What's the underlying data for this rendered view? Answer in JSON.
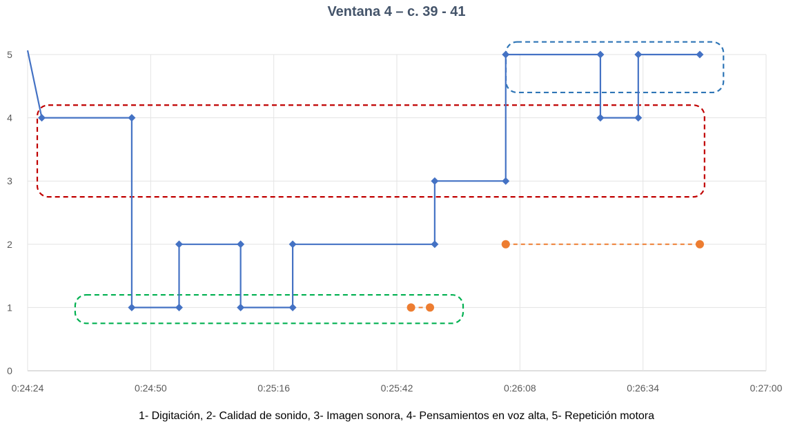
{
  "chart_data": {
    "type": "line",
    "title": "Ventana 4 – c. 39 - 41",
    "caption": "1- Digitación, 2- Calidad de sonido, 3- Imagen sonora, 4- Pensamientos en voz alta, 5- Repetición motora",
    "x_ticks": [
      "0:24:24",
      "0:24:50",
      "0:25:16",
      "0:25:42",
      "0:26:08",
      "0:26:34",
      "0:27:00"
    ],
    "y_ticks": [
      "0",
      "1",
      "2",
      "3",
      "4",
      "5"
    ],
    "xlim": [
      "0:24:24",
      "0:27:00"
    ],
    "ylim": [
      0,
      5
    ],
    "grid": true,
    "series": [
      {
        "color": "#4472c4",
        "style": "step",
        "marker": "diamond",
        "points": [
          {
            "x": "0:24:24",
            "y": 5.2,
            "marker": false
          },
          {
            "x": "0:24:27",
            "y": 4
          },
          {
            "x": "0:24:46",
            "y": 4
          },
          {
            "x": "0:24:46",
            "y": 1
          },
          {
            "x": "0:24:56",
            "y": 1
          },
          {
            "x": "0:24:56",
            "y": 2
          },
          {
            "x": "0:25:09",
            "y": 2
          },
          {
            "x": "0:25:09",
            "y": 1
          },
          {
            "x": "0:25:20",
            "y": 1
          },
          {
            "x": "0:25:20",
            "y": 2
          },
          {
            "x": "0:25:50",
            "y": 2
          },
          {
            "x": "0:25:50",
            "y": 3
          },
          {
            "x": "0:26:05",
            "y": 3
          },
          {
            "x": "0:26:05",
            "y": 5
          },
          {
            "x": "0:26:25",
            "y": 5
          },
          {
            "x": "0:26:25",
            "y": 4
          },
          {
            "x": "0:26:33",
            "y": 4
          },
          {
            "x": "0:26:33",
            "y": 5
          },
          {
            "x": "0:26:46",
            "y": 5
          }
        ]
      },
      {
        "color": "#ed7d31",
        "style": "dashed-segments",
        "marker": "circle",
        "segments": [
          [
            {
              "x": "0:25:45",
              "y": 1
            },
            {
              "x": "0:25:49",
              "y": 1
            }
          ],
          [
            {
              "x": "0:26:05",
              "y": 2
            },
            {
              "x": "0:26:46",
              "y": 2
            }
          ]
        ]
      }
    ],
    "regions": [
      {
        "color": "#c00000",
        "x_from": "0:24:24",
        "x_to": "0:26:47",
        "y_from": 2.75,
        "y_to": 4.2
      },
      {
        "color": "#00b050",
        "x_from": "0:24:32",
        "x_to": "0:25:56",
        "y_from": 0.75,
        "y_to": 1.2
      },
      {
        "color": "#2e75b6",
        "x_from": "0:26:03",
        "x_to": "0:26:51",
        "y_from": 4.4,
        "y_to": 5.2
      }
    ]
  }
}
